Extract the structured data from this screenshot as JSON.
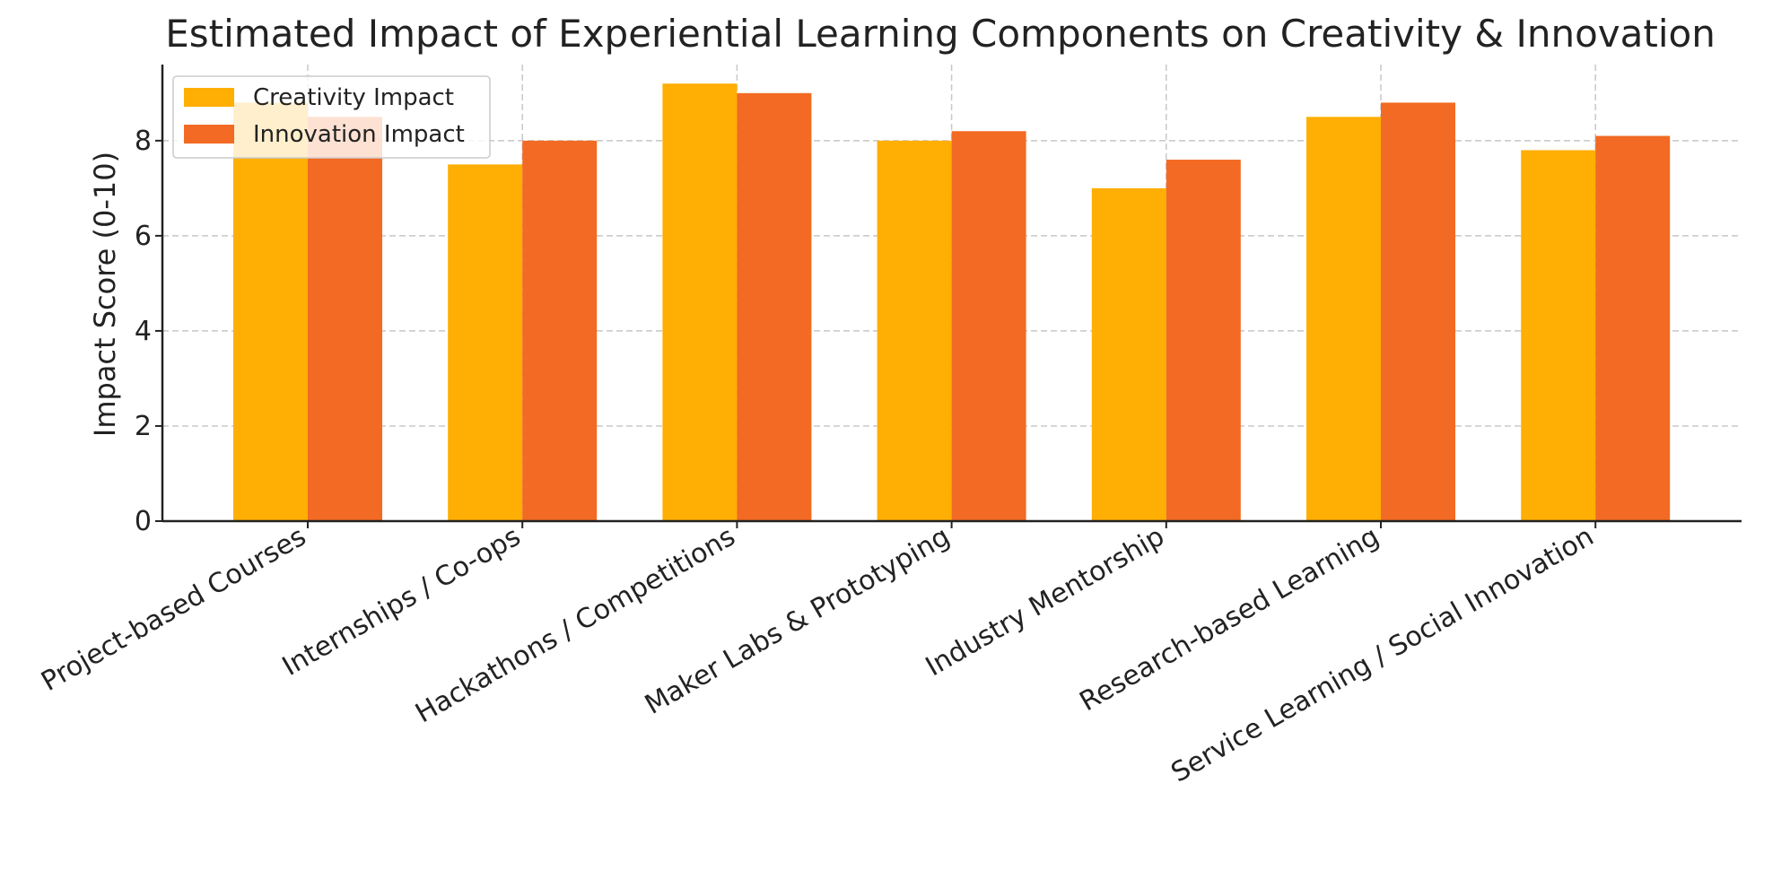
{
  "chart_data": {
    "type": "bar",
    "title": "Estimated Impact of Experiential Learning Components on Creativity & Innovation",
    "xlabel": "",
    "ylabel": "Impact Score (0-10)",
    "ylim": [
      0,
      9.6
    ],
    "yticks": [
      "0",
      "2",
      "4",
      "6",
      "8"
    ],
    "grid": true,
    "legend_position": "top-left",
    "categories": [
      "Project-based Courses",
      "Internships / Co-ops",
      "Hackathons / Competitions",
      "Maker Labs & Prototyping",
      "Industry Mentorship",
      "Research-based Learning",
      "Service Learning / Social Innovation"
    ],
    "series": [
      {
        "name": "Creativity Impact",
        "color": "#FFAE03",
        "values": [
          8.8,
          7.5,
          9.2,
          8.0,
          7.0,
          8.5,
          7.8
        ]
      },
      {
        "name": "Innovation Impact",
        "color": "#F26A23",
        "values": [
          8.5,
          8.0,
          9.0,
          8.2,
          7.6,
          8.8,
          8.1
        ]
      }
    ]
  }
}
